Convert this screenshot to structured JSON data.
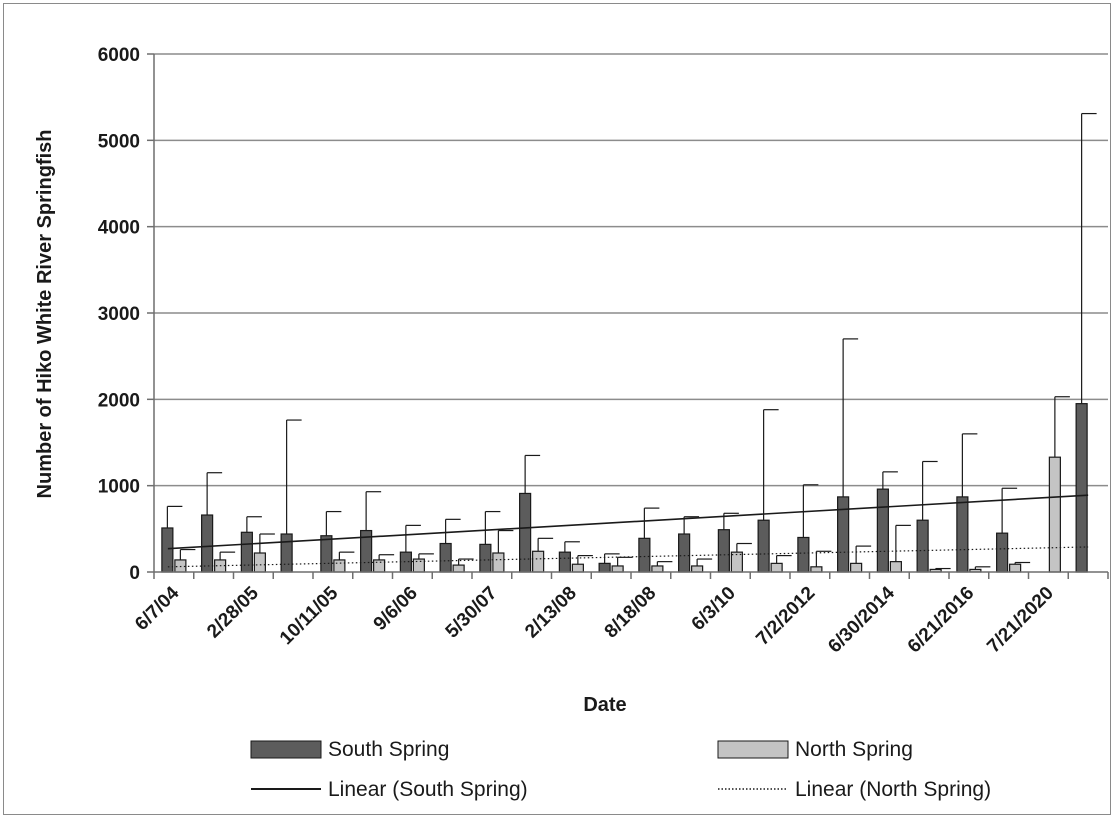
{
  "chart_data": {
    "type": "bar",
    "title": "",
    "xlabel": "Date",
    "ylabel": "Number of Hiko White River Springfish",
    "ylim": [
      0,
      6000
    ],
    "yticks": [
      "0",
      "1000",
      "2000",
      "3000",
      "4000",
      "5000",
      "6000"
    ],
    "grid": true,
    "legend_position": "bottom",
    "category_labels": [
      "6/7/04",
      "2/28/05",
      "10/11/05",
      "9/6/06",
      "5/30/07",
      "2/13/08",
      "8/18/08",
      "6/3/10",
      "7/2/2012",
      "6/30/2014",
      "6/21/2016",
      "7/21/2020"
    ],
    "series": [
      {
        "name": "South Spring",
        "color": "#5c5c5c",
        "values": [
          510,
          660,
          460,
          440,
          420,
          480,
          230,
          330,
          320,
          910,
          230,
          100,
          390,
          440,
          490,
          600,
          400,
          870,
          960,
          600,
          870,
          450,
          0,
          1950
        ],
        "error_upper": [
          760,
          1150,
          640,
          1760,
          700,
          930,
          540,
          610,
          700,
          1350,
          350,
          210,
          740,
          640,
          680,
          1880,
          1010,
          2700,
          1160,
          1280,
          1600,
          970,
          null,
          5310
        ]
      },
      {
        "name": "North Spring",
        "color": "#c4c4c4",
        "values": [
          140,
          140,
          220,
          0,
          140,
          140,
          150,
          80,
          220,
          240,
          90,
          70,
          70,
          70,
          230,
          100,
          60,
          100,
          120,
          30,
          30,
          90,
          1330,
          0
        ],
        "error_upper": [
          260,
          230,
          440,
          null,
          230,
          200,
          210,
          150,
          480,
          390,
          190,
          170,
          120,
          150,
          330,
          190,
          240,
          300,
          540,
          40,
          60,
          110,
          2030,
          null
        ]
      }
    ],
    "trendlines": [
      {
        "name": "Linear (South Spring)",
        "style": "solid",
        "start": 270,
        "end": 890
      },
      {
        "name": "Linear (North Spring)",
        "style": "dotted",
        "start": 60,
        "end": 290
      }
    ]
  }
}
